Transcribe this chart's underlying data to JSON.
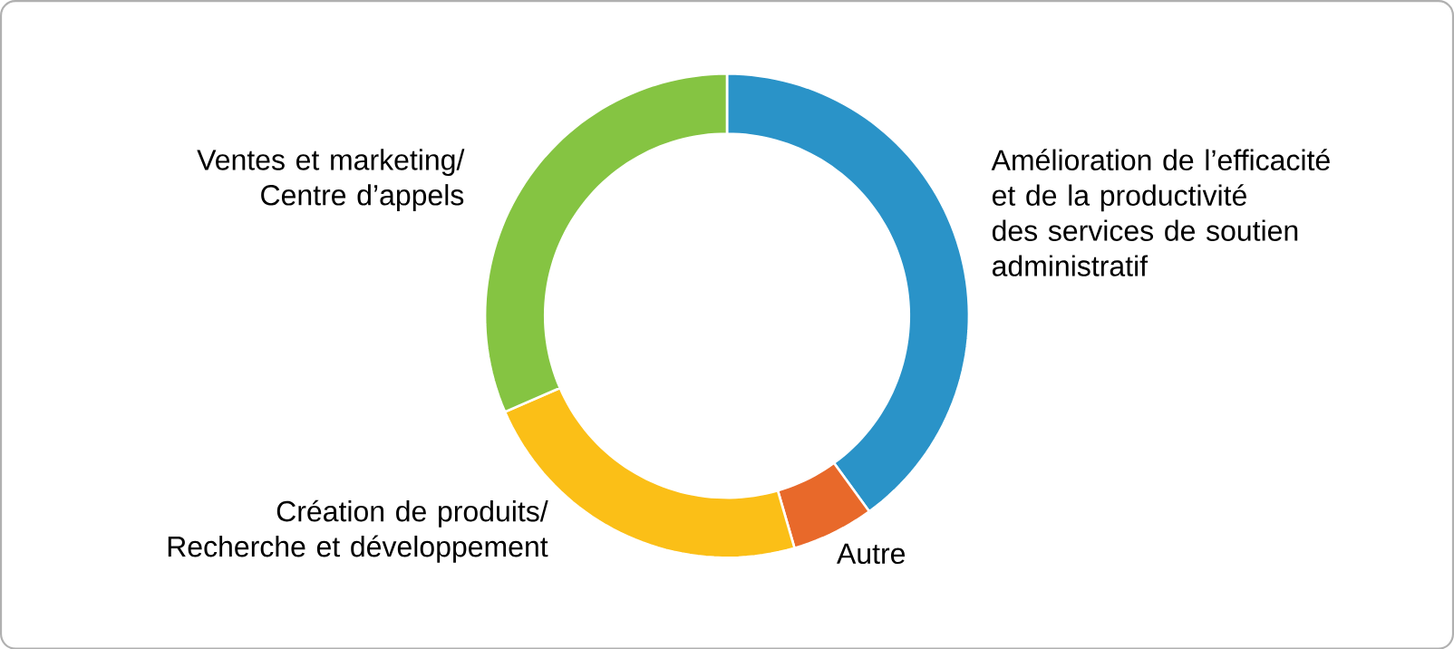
{
  "chart_data": {
    "type": "donut",
    "categories": [
      "Amélioration de l’efficacité et de la productivité des services de soutien administratif",
      "Autre",
      "Création de produits/ Recherche et développement",
      "Ventes et marketing/ Centre d’appels"
    ],
    "values": [
      40,
      5.5,
      23,
      31.5
    ],
    "colors": [
      "#2a93c8",
      "#e8692a",
      "#fbbf17",
      "#85c442"
    ]
  }
}
